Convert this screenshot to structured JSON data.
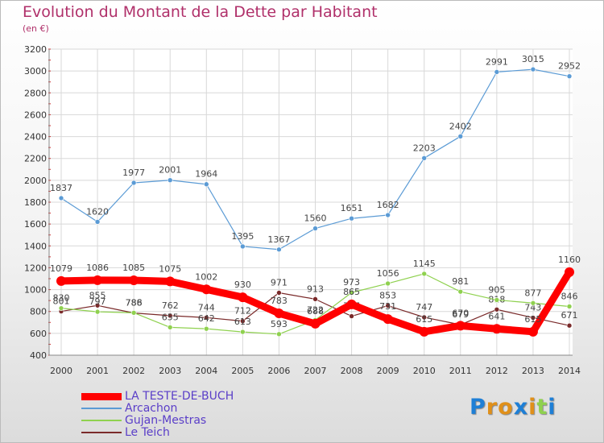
{
  "chart_data": {
    "type": "line",
    "title": "Evolution du Montant de la Dette par Habitant",
    "subtitle": "(en €)",
    "xlabel": "",
    "ylabel": "",
    "ylim": [
      400,
      3200
    ],
    "yticks": [
      400,
      600,
      800,
      1000,
      1200,
      1400,
      1600,
      1800,
      2000,
      2200,
      2400,
      2600,
      2800,
      3000,
      3200
    ],
    "categories": [
      "2000",
      "2001",
      "2002",
      "2003",
      "2004",
      "2005",
      "2006",
      "2007",
      "2008",
      "2009",
      "2010",
      "2011",
      "2012",
      "2013",
      "2014"
    ],
    "series": [
      {
        "name": "LA TESTE-DE-BUCH",
        "color": "#ff0000",
        "values": [
          1079,
          1086,
          1085,
          1075,
          1002,
          930,
          783,
          688,
          865,
          731,
          615,
          670,
          641,
          615,
          1160
        ]
      },
      {
        "name": "Arcachon",
        "color": "#5b9bd5",
        "values": [
          1837,
          1620,
          1977,
          2001,
          1964,
          1395,
          1367,
          1560,
          1651,
          1682,
          2203,
          2402,
          2991,
          3015,
          2952
        ]
      },
      {
        "name": "Gujan-Mestras",
        "color": "#8fd14f",
        "values": [
          830,
          797,
          788,
          655,
          642,
          613,
          593,
          722,
          973,
          1056,
          1145,
          981,
          905,
          877,
          846
        ]
      },
      {
        "name": "Le Teich",
        "color": "#7a2a2a",
        "values": [
          801,
          855,
          786,
          762,
          744,
          712,
          971,
          913,
          757,
          853,
          747,
          679,
          818,
          743,
          671
        ]
      }
    ],
    "legend_position": "bottom-left"
  },
  "branding": {
    "letters": [
      {
        "char": "P",
        "color": "#1e7fd6"
      },
      {
        "char": "r",
        "color": "#e0901a"
      },
      {
        "char": "o",
        "color": "#e0901a"
      },
      {
        "char": "x",
        "color": "#1e7fd6"
      },
      {
        "char": "i",
        "color": "#e0901a"
      },
      {
        "char": "t",
        "color": "#8fd14f"
      },
      {
        "char": "i",
        "color": "#1e7fd6"
      }
    ]
  }
}
